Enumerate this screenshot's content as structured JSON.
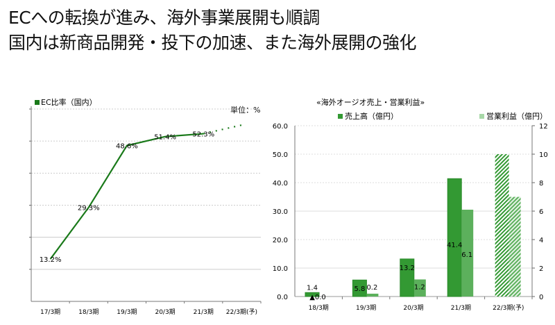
{
  "header": {
    "line1": "ECへの転換が進み、海外事業展開も順調",
    "line2": "国内は新商品開発・投下の加速、また海外展開の強化"
  },
  "chart_data": [
    {
      "type": "line",
      "legend": "EC比率（国内）",
      "unit_label": "単位：%",
      "categories": [
        "17/3期",
        "18/3期",
        "19/3期",
        "20/3期",
        "21/3期",
        "22/3期(予)"
      ],
      "values": [
        13.2,
        29.3,
        48.6,
        51.4,
        52.3,
        55
      ],
      "data_labels": [
        "13.2%",
        "29.3%",
        "48.6%",
        "51.4%",
        "52.3%",
        ""
      ],
      "forecast_from_index": 4,
      "ylim": [
        0,
        60
      ],
      "grid": true,
      "color": "#1a7a1a"
    },
    {
      "type": "bar",
      "title": "«海外オージオ売上・営業利益»",
      "categories": [
        "18/3期",
        "19/3期",
        "20/3期",
        "21/3期",
        "22/3期(予)"
      ],
      "series": [
        {
          "name": "売上高（億円）",
          "axis": "left",
          "values": [
            1.4,
            5.8,
            13.2,
            41.4,
            50
          ],
          "data_labels": [
            "1.4",
            "5.8",
            "13.2",
            "41.4",
            ""
          ],
          "color": "#339933"
        },
        {
          "name": "営業利益（億円）",
          "axis": "right",
          "values": [
            0,
            0.2,
            1.2,
            6.1,
            7
          ],
          "data_labels": [
            "▲0.0",
            "0.2",
            "1.2",
            "6.1",
            ""
          ],
          "color": "#5cb05c"
        }
      ],
      "forecast_index": 4,
      "ylim_left": [
        0,
        60
      ],
      "yticks_left": [
        "0.0",
        "10.0",
        "20.0",
        "30.0",
        "40.0",
        "50.0",
        "60.0"
      ],
      "ylim_right": [
        0,
        12
      ],
      "yticks_right": [
        "0",
        "2",
        "4",
        "6",
        "8",
        "10",
        "12"
      ],
      "grid": true
    }
  ]
}
